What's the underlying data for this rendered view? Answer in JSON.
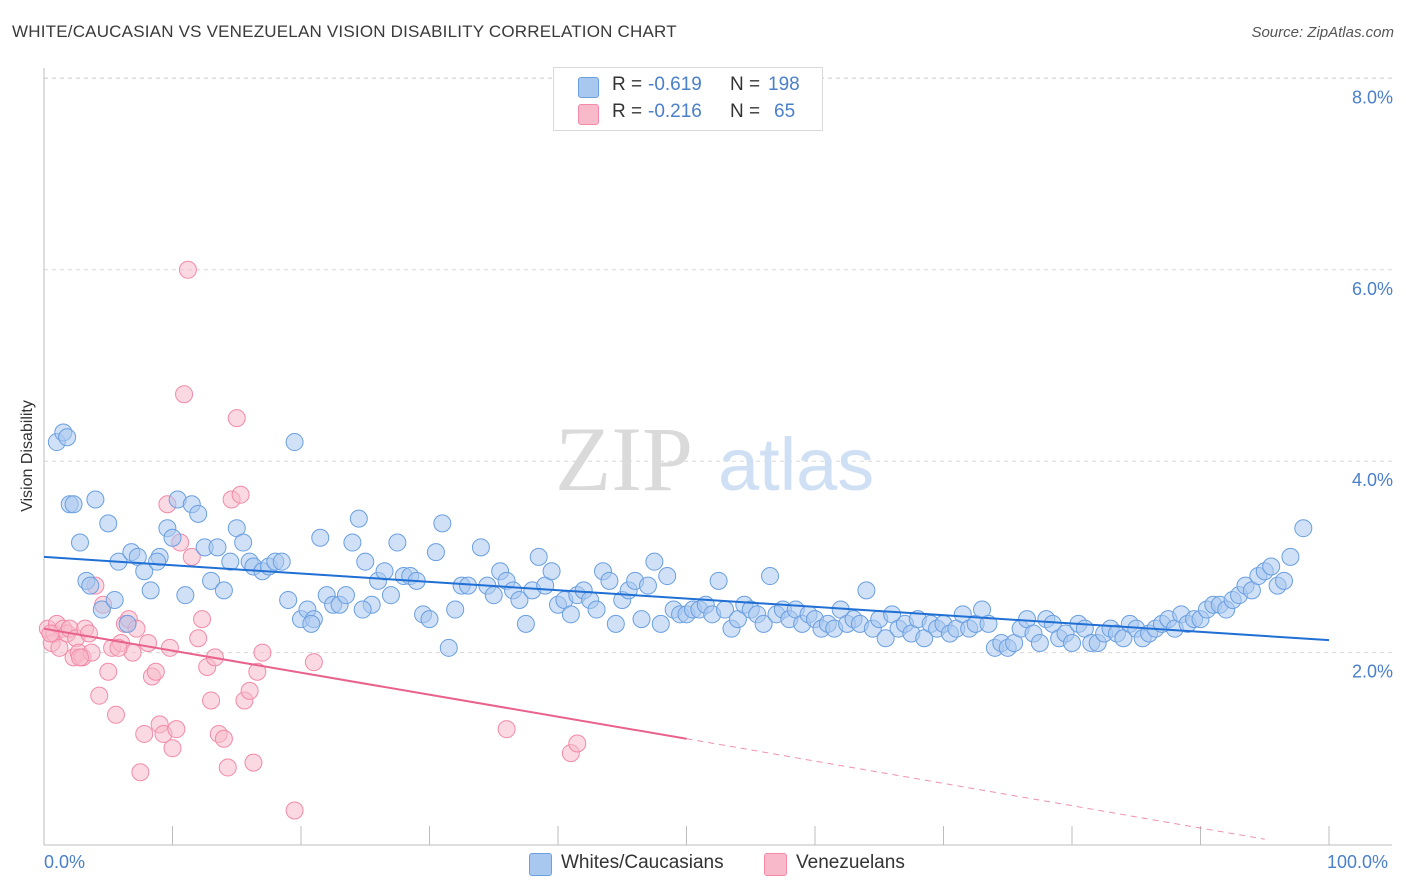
{
  "header": {
    "title": "WHITE/CAUCASIAN VS VENEZUELAN VISION DISABILITY CORRELATION CHART",
    "source": "Source: ZipAtlas.com"
  },
  "watermark": {
    "part1": "ZIP",
    "part2": "atlas"
  },
  "legend": {
    "rows": [
      {
        "r_label": "R =",
        "r_value": "-0.619",
        "n_label": "N =",
        "n_value": "198",
        "color": "#a9c8f0"
      },
      {
        "r_label": "R =",
        "r_value": "-0.216",
        "n_label": "N =",
        "n_value": "65",
        "color": "#f8b9cb"
      }
    ]
  },
  "bottom_legend": {
    "items": [
      {
        "label": "Whites/Caucasians",
        "color": "#a9c8f0"
      },
      {
        "label": "Venezuelans",
        "color": "#f8b9cb"
      }
    ]
  },
  "colors": {
    "blue_fill": "#a9c8f0",
    "blue_stroke": "#6a9fe0",
    "blue_line": "#1f6fd4",
    "pink_fill": "#f8b9cb",
    "pink_stroke": "#f28aa8",
    "pink_line": "#e8628c",
    "tick_text": "#4a7fc9",
    "grid": "#d8d8d8"
  },
  "chart_data": {
    "type": "scatter",
    "title": "WHITE/CAUCASIAN VS VENEZUELAN VISION DISABILITY CORRELATION CHART",
    "xlabel": "",
    "ylabel": "Vision Disability",
    "xlim": [
      0,
      100
    ],
    "ylim": [
      0,
      8.0
    ],
    "x_tick_labels": [
      "0.0%",
      "100.0%"
    ],
    "y_ticks": [
      2.0,
      4.0,
      6.0,
      8.0
    ],
    "y_tick_labels": [
      "2.0%",
      "4.0%",
      "6.0%",
      "8.0%"
    ],
    "grid": true,
    "legend_position": "top-center",
    "series": [
      {
        "name": "Whites/Caucasians",
        "r": -0.619,
        "n": 198,
        "trend": {
          "x": [
            0,
            100
          ],
          "y": [
            3.0,
            2.13
          ]
        },
        "points": [
          [
            1,
            4.2
          ],
          [
            1.5,
            4.3
          ],
          [
            2,
            3.55
          ],
          [
            2.3,
            3.55
          ],
          [
            2.8,
            3.15
          ],
          [
            3.3,
            2.75
          ],
          [
            4,
            3.6
          ],
          [
            4.5,
            2.45
          ],
          [
            5,
            3.35
          ],
          [
            5.5,
            2.55
          ],
          [
            5.8,
            2.95
          ],
          [
            6.5,
            2.3
          ],
          [
            6.8,
            3.05
          ],
          [
            7.3,
            3.0
          ],
          [
            7.8,
            2.85
          ],
          [
            8.3,
            2.65
          ],
          [
            9,
            3.0
          ],
          [
            9.6,
            3.3
          ],
          [
            10,
            3.2
          ],
          [
            10.4,
            3.6
          ],
          [
            11,
            2.6
          ],
          [
            11.5,
            3.55
          ],
          [
            12,
            3.45
          ],
          [
            12.5,
            3.1
          ],
          [
            13,
            2.75
          ],
          [
            13.5,
            3.1
          ],
          [
            14,
            2.65
          ],
          [
            14.5,
            2.95
          ],
          [
            15,
            3.3
          ],
          [
            15.5,
            3.15
          ],
          [
            16,
            2.95
          ],
          [
            16.3,
            2.9
          ],
          [
            17,
            2.85
          ],
          [
            17.5,
            2.9
          ],
          [
            18,
            2.95
          ],
          [
            18.5,
            2.95
          ],
          [
            19,
            2.55
          ],
          [
            19.5,
            4.2
          ],
          [
            20,
            2.35
          ],
          [
            20.5,
            2.45
          ],
          [
            21,
            2.35
          ],
          [
            21.5,
            3.2
          ],
          [
            22,
            2.6
          ],
          [
            22.5,
            2.5
          ],
          [
            23,
            2.5
          ],
          [
            23.5,
            2.6
          ],
          [
            24,
            3.15
          ],
          [
            24.5,
            3.4
          ],
          [
            25,
            2.95
          ],
          [
            25.5,
            2.5
          ],
          [
            26,
            2.75
          ],
          [
            26.5,
            2.85
          ],
          [
            27,
            2.6
          ],
          [
            27.5,
            3.15
          ],
          [
            28,
            2.8
          ],
          [
            28.5,
            2.8
          ],
          [
            29,
            2.75
          ],
          [
            29.5,
            2.4
          ],
          [
            30,
            2.35
          ],
          [
            30.5,
            3.05
          ],
          [
            31,
            3.35
          ],
          [
            31.5,
            2.05
          ],
          [
            32,
            2.45
          ],
          [
            32.5,
            2.7
          ],
          [
            33,
            2.7
          ],
          [
            34,
            3.1
          ],
          [
            34.5,
            2.7
          ],
          [
            35,
            2.6
          ],
          [
            35.5,
            2.85
          ],
          [
            36,
            2.75
          ],
          [
            36.5,
            2.65
          ],
          [
            37,
            2.55
          ],
          [
            37.5,
            2.3
          ],
          [
            38,
            2.65
          ],
          [
            38.5,
            3.0
          ],
          [
            39,
            2.7
          ],
          [
            39.5,
            2.85
          ],
          [
            40,
            2.5
          ],
          [
            40.5,
            2.55
          ],
          [
            41,
            2.4
          ],
          [
            41.5,
            2.6
          ],
          [
            42,
            2.65
          ],
          [
            42.5,
            2.55
          ],
          [
            43,
            2.45
          ],
          [
            43.5,
            2.85
          ],
          [
            44,
            2.75
          ],
          [
            44.5,
            2.3
          ],
          [
            45,
            2.55
          ],
          [
            45.5,
            2.65
          ],
          [
            46,
            2.75
          ],
          [
            46.5,
            2.35
          ],
          [
            47,
            2.7
          ],
          [
            47.5,
            2.95
          ],
          [
            48,
            2.3
          ],
          [
            48.5,
            2.8
          ],
          [
            49,
            2.45
          ],
          [
            49.5,
            2.4
          ],
          [
            50,
            2.4
          ],
          [
            50.5,
            2.45
          ],
          [
            51,
            2.45
          ],
          [
            51.5,
            2.5
          ],
          [
            52,
            2.4
          ],
          [
            52.5,
            2.75
          ],
          [
            53,
            2.45
          ],
          [
            53.5,
            2.25
          ],
          [
            54,
            2.35
          ],
          [
            54.5,
            2.5
          ],
          [
            55,
            2.45
          ],
          [
            55.5,
            2.4
          ],
          [
            56,
            2.3
          ],
          [
            56.5,
            2.8
          ],
          [
            57,
            2.4
          ],
          [
            57.5,
            2.45
          ],
          [
            58,
            2.35
          ],
          [
            58.5,
            2.45
          ],
          [
            59,
            2.3
          ],
          [
            59.5,
            2.4
          ],
          [
            60,
            2.35
          ],
          [
            60.5,
            2.25
          ],
          [
            61,
            2.3
          ],
          [
            61.5,
            2.25
          ],
          [
            62,
            2.45
          ],
          [
            62.5,
            2.3
          ],
          [
            63,
            2.35
          ],
          [
            63.5,
            2.3
          ],
          [
            64,
            2.65
          ],
          [
            64.5,
            2.25
          ],
          [
            65,
            2.35
          ],
          [
            65.5,
            2.15
          ],
          [
            66,
            2.4
          ],
          [
            66.5,
            2.25
          ],
          [
            67,
            2.3
          ],
          [
            67.5,
            2.2
          ],
          [
            68,
            2.35
          ],
          [
            68.5,
            2.15
          ],
          [
            69,
            2.3
          ],
          [
            69.5,
            2.25
          ],
          [
            70,
            2.3
          ],
          [
            70.5,
            2.2
          ],
          [
            71,
            2.25
          ],
          [
            71.5,
            2.4
          ],
          [
            72,
            2.25
          ],
          [
            72.5,
            2.3
          ],
          [
            73,
            2.45
          ],
          [
            73.5,
            2.3
          ],
          [
            74,
            2.05
          ],
          [
            74.5,
            2.1
          ],
          [
            75,
            2.05
          ],
          [
            75.5,
            2.1
          ],
          [
            76,
            2.25
          ],
          [
            76.5,
            2.35
          ],
          [
            77,
            2.2
          ],
          [
            77.5,
            2.1
          ],
          [
            78,
            2.35
          ],
          [
            78.5,
            2.3
          ],
          [
            79,
            2.15
          ],
          [
            79.5,
            2.2
          ],
          [
            80,
            2.1
          ],
          [
            80.5,
            2.3
          ],
          [
            81,
            2.25
          ],
          [
            81.5,
            2.1
          ],
          [
            82,
            2.1
          ],
          [
            82.5,
            2.2
          ],
          [
            83,
            2.25
          ],
          [
            83.5,
            2.2
          ],
          [
            84,
            2.15
          ],
          [
            84.5,
            2.3
          ],
          [
            85,
            2.25
          ],
          [
            85.5,
            2.15
          ],
          [
            86,
            2.2
          ],
          [
            86.5,
            2.25
          ],
          [
            87,
            2.3
          ],
          [
            87.5,
            2.35
          ],
          [
            88,
            2.25
          ],
          [
            88.5,
            2.4
          ],
          [
            89,
            2.3
          ],
          [
            89.5,
            2.35
          ],
          [
            90,
            2.35
          ],
          [
            90.5,
            2.45
          ],
          [
            91,
            2.5
          ],
          [
            91.5,
            2.5
          ],
          [
            92,
            2.45
          ],
          [
            92.5,
            2.55
          ],
          [
            93,
            2.6
          ],
          [
            93.5,
            2.7
          ],
          [
            94,
            2.65
          ],
          [
            94.5,
            2.8
          ],
          [
            95,
            2.85
          ],
          [
            95.5,
            2.9
          ],
          [
            96,
            2.7
          ],
          [
            96.5,
            2.75
          ],
          [
            97,
            3.0
          ],
          [
            98,
            3.3
          ],
          [
            1.8,
            4.25
          ],
          [
            3.6,
            2.7
          ],
          [
            8.8,
            2.95
          ],
          [
            20.8,
            2.3
          ],
          [
            24.8,
            2.45
          ]
        ]
      },
      {
        "name": "Venezuelans",
        "r": -0.216,
        "n": 65,
        "trend": {
          "x": [
            0,
            50
          ],
          "y": [
            2.25,
            1.1
          ]
        },
        "trend_dashed": {
          "x": [
            50,
            95
          ],
          "y": [
            1.1,
            0.05
          ]
        },
        "points": [
          [
            0.3,
            2.25
          ],
          [
            0.6,
            2.1
          ],
          [
            0.8,
            2.2
          ],
          [
            1,
            2.3
          ],
          [
            1.2,
            2.05
          ],
          [
            1.5,
            2.25
          ],
          [
            1.8,
            2.2
          ],
          [
            2,
            2.25
          ],
          [
            2.3,
            1.95
          ],
          [
            2.5,
            2.15
          ],
          [
            2.7,
            2.0
          ],
          [
            3,
            1.95
          ],
          [
            3.2,
            2.25
          ],
          [
            3.5,
            2.2
          ],
          [
            3.7,
            2.0
          ],
          [
            4,
            2.7
          ],
          [
            4.3,
            1.55
          ],
          [
            4.6,
            2.5
          ],
          [
            5,
            1.8
          ],
          [
            5.3,
            2.05
          ],
          [
            5.6,
            1.35
          ],
          [
            6,
            2.1
          ],
          [
            6.3,
            2.3
          ],
          [
            6.6,
            2.35
          ],
          [
            6.9,
            2.0
          ],
          [
            7.2,
            2.25
          ],
          [
            7.5,
            0.75
          ],
          [
            7.8,
            1.15
          ],
          [
            8.1,
            2.1
          ],
          [
            8.4,
            1.75
          ],
          [
            8.7,
            1.8
          ],
          [
            9,
            1.25
          ],
          [
            9.3,
            1.15
          ],
          [
            9.6,
            3.55
          ],
          [
            10,
            1.0
          ],
          [
            10.3,
            1.2
          ],
          [
            10.6,
            3.15
          ],
          [
            10.9,
            4.7
          ],
          [
            11.2,
            6.0
          ],
          [
            11.5,
            3.0
          ],
          [
            12,
            2.15
          ],
          [
            12.3,
            2.35
          ],
          [
            12.7,
            1.85
          ],
          [
            13,
            1.5
          ],
          [
            13.3,
            1.95
          ],
          [
            13.6,
            1.15
          ],
          [
            14,
            1.1
          ],
          [
            14.3,
            0.8
          ],
          [
            14.6,
            3.6
          ],
          [
            15,
            4.45
          ],
          [
            15.3,
            3.65
          ],
          [
            15.6,
            1.5
          ],
          [
            16,
            1.6
          ],
          [
            16.3,
            0.85
          ],
          [
            16.6,
            1.8
          ],
          [
            17,
            2.0
          ],
          [
            19.5,
            0.35
          ],
          [
            21,
            1.9
          ],
          [
            36,
            1.2
          ],
          [
            41,
            0.95
          ],
          [
            41.5,
            1.05
          ],
          [
            0.5,
            2.2
          ],
          [
            2.8,
            1.95
          ],
          [
            5.8,
            2.05
          ],
          [
            9.8,
            2.05
          ]
        ]
      }
    ]
  }
}
